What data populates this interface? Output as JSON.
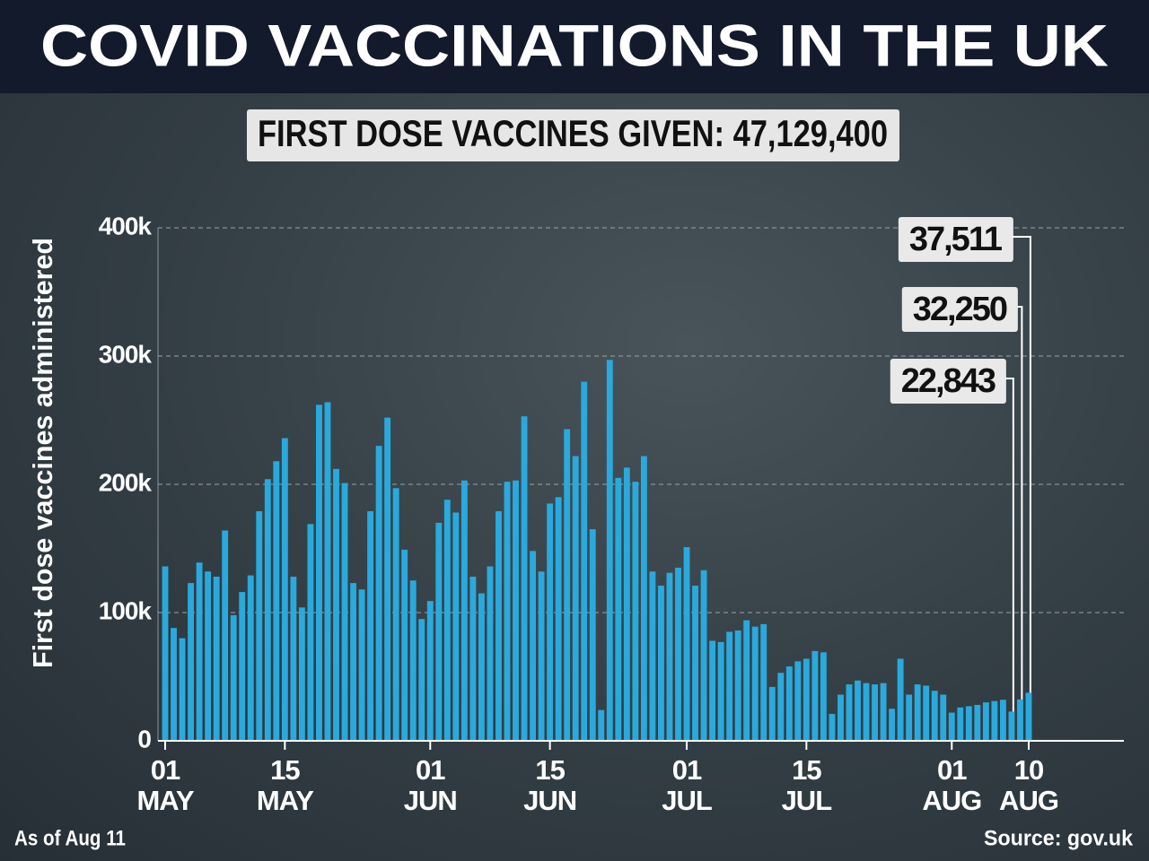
{
  "title": "COVID VACCINATIONS IN THE UK",
  "chart_data": {
    "type": "bar",
    "subtitle": "FIRST DOSE VACCINES GIVEN: 47,129,400",
    "y_label": "First dose vaccines administered",
    "note": "As of Aug 11",
    "source": "Source: gov.uk",
    "color": "#2aa9dd",
    "grid": true,
    "ylim": [
      0,
      400000
    ],
    "yticks": [
      0,
      {
        "value": 100000,
        "label": "100k"
      },
      {
        "value": 200000,
        "label": "200k"
      },
      {
        "value": 300000,
        "label": "300k"
      },
      {
        "value": 400000,
        "label": "400k"
      }
    ],
    "categories": [
      "01 MAY",
      null,
      null,
      null,
      null,
      null,
      null,
      null,
      null,
      null,
      null,
      null,
      null,
      null,
      "15 MAY",
      null,
      null,
      null,
      null,
      null,
      null,
      null,
      null,
      null,
      null,
      null,
      null,
      null,
      null,
      null,
      null,
      "01 JUN",
      null,
      null,
      null,
      null,
      null,
      null,
      null,
      null,
      null,
      null,
      null,
      null,
      null,
      "15 JUN",
      null,
      null,
      null,
      null,
      null,
      null,
      null,
      null,
      null,
      null,
      null,
      null,
      null,
      null,
      null,
      "01 JUL",
      null,
      null,
      null,
      null,
      null,
      null,
      null,
      null,
      null,
      null,
      null,
      null,
      null,
      "15 JUL",
      null,
      null,
      null,
      null,
      null,
      null,
      null,
      null,
      null,
      null,
      null,
      null,
      null,
      null,
      null,
      null,
      "01 AUG",
      null,
      null,
      null,
      null,
      null,
      null,
      null,
      null,
      "10 AUG"
    ],
    "values": [
      136000,
      88000,
      80000,
      123000,
      139000,
      132000,
      128000,
      164000,
      98000,
      116000,
      129000,
      179000,
      204000,
      218000,
      236000,
      128000,
      104000,
      169000,
      262000,
      264000,
      212000,
      201000,
      123000,
      118000,
      179000,
      230000,
      252000,
      197000,
      149000,
      125000,
      95000,
      109000,
      170000,
      188000,
      178000,
      203000,
      128000,
      115000,
      136000,
      179000,
      202000,
      203000,
      253000,
      148000,
      132000,
      185000,
      190000,
      243000,
      222000,
      280000,
      165000,
      24000,
      297000,
      205000,
      213000,
      202000,
      222000,
      132000,
      121000,
      131000,
      135000,
      151000,
      121000,
      133000,
      78000,
      77000,
      85000,
      86000,
      94000,
      89000,
      91000,
      42000,
      53000,
      58000,
      62000,
      64000,
      70000,
      69000,
      21000,
      36000,
      44000,
      47000,
      45000,
      44000,
      45000,
      25000,
      64000,
      36000,
      44000,
      43000,
      39000,
      36000,
      22000,
      26000,
      27000,
      28000,
      30000,
      31000,
      32000,
      22843,
      32250,
      37511
    ],
    "value_labels": [
      null,
      null,
      null,
      null,
      null,
      null,
      null,
      null,
      null,
      null,
      null,
      null,
      null,
      null,
      null,
      null,
      null,
      null,
      null,
      null,
      null,
      null,
      null,
      null,
      null,
      null,
      null,
      null,
      null,
      null,
      null,
      null,
      null,
      null,
      null,
      null,
      null,
      null,
      null,
      null,
      null,
      null,
      null,
      null,
      null,
      null,
      null,
      null,
      null,
      null,
      null,
      null,
      null,
      null,
      null,
      null,
      null,
      null,
      null,
      null,
      null,
      null,
      null,
      null,
      null,
      null,
      null,
      null,
      null,
      null,
      null,
      null,
      null,
      null,
      null,
      null,
      null,
      null,
      null,
      null,
      null,
      null,
      null,
      null,
      null,
      null,
      null,
      null,
      null,
      null,
      null,
      null,
      null,
      null,
      null,
      null,
      null,
      null,
      null,
      "22,843",
      "32,250",
      "37,511"
    ]
  }
}
